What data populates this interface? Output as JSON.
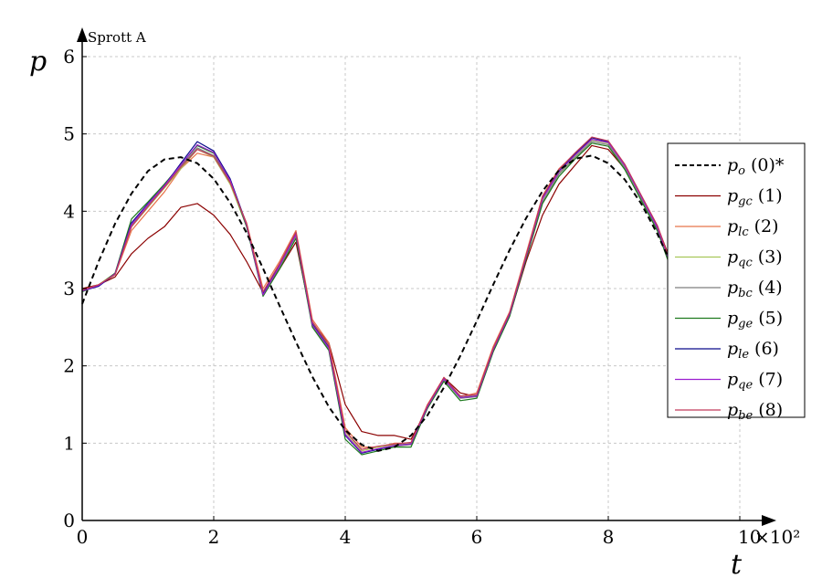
{
  "chart_data": {
    "type": "line",
    "title": "Sprott A",
    "xlabel": "t",
    "ylabel": "p",
    "x_multiplier_label": "×10²",
    "xlim": [
      0,
      10
    ],
    "ylim": [
      0,
      6
    ],
    "x_ticks": [
      "0",
      "2",
      "4",
      "6",
      "8",
      "10"
    ],
    "y_ticks": [
      "0",
      "1",
      "2",
      "3",
      "4",
      "5",
      "6"
    ],
    "grid": true,
    "legend_position": "right",
    "reference": {
      "legend_main": "p",
      "legend_sub": "o",
      "legend_tag": "(0)*",
      "color": "#000000",
      "dash": true,
      "x": [
        0,
        0.25,
        0.5,
        0.75,
        1.0,
        1.25,
        1.5,
        1.75,
        2.0,
        2.25,
        2.5,
        2.75,
        3.0,
        3.25,
        3.5,
        3.75,
        4.0,
        4.25,
        4.5,
        4.75,
        5.0,
        5.25,
        5.5,
        5.75,
        6.0,
        6.25,
        6.5,
        6.75,
        7.0,
        7.25,
        7.5,
        7.75,
        8.0,
        8.25,
        8.5,
        8.75,
        9.0,
        9.25,
        9.5,
        9.75
      ],
      "y": [
        2.8,
        3.35,
        3.84,
        4.23,
        4.52,
        4.67,
        4.7,
        4.62,
        4.42,
        4.11,
        3.72,
        3.26,
        2.78,
        2.31,
        1.86,
        1.47,
        1.17,
        0.98,
        0.9,
        0.95,
        1.1,
        1.36,
        1.72,
        2.13,
        2.58,
        3.05,
        3.5,
        3.91,
        4.26,
        4.53,
        4.68,
        4.72,
        4.62,
        4.41,
        4.1,
        3.7,
        3.24,
        2.76,
        2.29,
        1.84
      ]
    },
    "x": [
      0,
      0.25,
      0.5,
      0.75,
      1.0,
      1.25,
      1.5,
      1.75,
      2.0,
      2.25,
      2.5,
      2.75,
      3.0,
      3.25,
      3.5,
      3.75,
      4.0,
      4.25,
      4.5,
      4.75,
      5.0,
      5.25,
      5.5,
      5.75,
      6.0,
      6.25,
      6.5,
      6.75,
      7.0,
      7.25,
      7.5,
      7.75,
      8.0,
      8.25,
      8.5,
      8.75,
      9.0
    ],
    "series": [
      {
        "legend_sub": "gc",
        "legend_tag": "(1)",
        "color": "#8b0000",
        "y": [
          3.0,
          3.05,
          3.15,
          3.45,
          3.65,
          3.8,
          4.05,
          4.1,
          3.95,
          3.7,
          3.35,
          2.95,
          3.25,
          3.6,
          2.55,
          2.3,
          1.5,
          1.15,
          1.1,
          1.1,
          1.05,
          1.45,
          1.85,
          1.65,
          1.6,
          2.2,
          2.65,
          3.35,
          3.95,
          4.35,
          4.6,
          4.85,
          4.8,
          4.55,
          4.15,
          3.8,
          3.25
        ]
      },
      {
        "legend_sub": "lc",
        "legend_tag": "(2)",
        "color": "#e8734a",
        "y": [
          2.98,
          3.05,
          3.18,
          3.75,
          4.0,
          4.25,
          4.55,
          4.75,
          4.7,
          4.35,
          3.85,
          3.0,
          3.35,
          3.75,
          2.6,
          2.3,
          1.2,
          0.95,
          0.95,
          1.0,
          1.0,
          1.5,
          1.85,
          1.6,
          1.65,
          2.25,
          2.7,
          3.45,
          4.2,
          4.55,
          4.75,
          4.95,
          4.9,
          4.6,
          4.2,
          3.8,
          3.2
        ]
      },
      {
        "legend_sub": "qc",
        "legend_tag": "(3)",
        "color": "#a8c85a",
        "y": [
          2.98,
          3.05,
          3.2,
          3.8,
          4.05,
          4.3,
          4.55,
          4.8,
          4.7,
          4.35,
          3.8,
          2.95,
          3.3,
          3.7,
          2.55,
          2.25,
          1.15,
          0.9,
          0.95,
          0.98,
          1.0,
          1.48,
          1.83,
          1.6,
          1.62,
          2.22,
          2.68,
          3.42,
          4.15,
          4.5,
          4.72,
          4.92,
          4.88,
          4.58,
          4.18,
          3.78,
          3.18
        ]
      },
      {
        "legend_sub": "bc",
        "legend_tag": "(4)",
        "color": "#7f7f7f",
        "y": [
          2.97,
          3.04,
          3.18,
          3.82,
          4.08,
          4.32,
          4.58,
          4.82,
          4.72,
          4.38,
          3.82,
          2.92,
          3.28,
          3.68,
          2.52,
          2.22,
          1.12,
          0.88,
          0.92,
          0.96,
          0.98,
          1.46,
          1.82,
          1.58,
          1.6,
          2.2,
          2.66,
          3.4,
          4.12,
          4.48,
          4.7,
          4.9,
          4.86,
          4.56,
          4.16,
          3.76,
          3.16
        ]
      },
      {
        "legend_sub": "ge",
        "legend_tag": "(5)",
        "color": "#1e7a1e",
        "y": [
          2.96,
          3.04,
          3.2,
          3.9,
          4.12,
          4.35,
          4.6,
          4.85,
          4.75,
          4.4,
          3.8,
          2.9,
          3.25,
          3.65,
          2.5,
          2.2,
          1.05,
          0.85,
          0.9,
          0.95,
          0.95,
          1.45,
          1.8,
          1.55,
          1.58,
          2.18,
          2.64,
          3.38,
          4.1,
          4.45,
          4.68,
          4.88,
          4.84,
          4.54,
          4.14,
          3.74,
          3.14
        ]
      },
      {
        "legend_sub": "le",
        "legend_tag": "(6)",
        "color": "#0a0a8a",
        "y": [
          2.97,
          3.03,
          3.19,
          3.85,
          4.1,
          4.33,
          4.62,
          4.9,
          4.78,
          4.42,
          3.83,
          2.93,
          3.3,
          3.72,
          2.54,
          2.24,
          1.1,
          0.87,
          0.92,
          0.97,
          0.99,
          1.47,
          1.84,
          1.59,
          1.61,
          2.21,
          2.67,
          3.41,
          4.18,
          4.52,
          4.74,
          4.95,
          4.9,
          4.6,
          4.2,
          3.79,
          3.19
        ]
      },
      {
        "legend_sub": "qe",
        "legend_tag": "(7)",
        "color": "#9b1fd0",
        "y": [
          2.97,
          3.04,
          3.19,
          3.83,
          4.09,
          4.33,
          4.6,
          4.86,
          4.76,
          4.4,
          3.82,
          2.92,
          3.29,
          3.7,
          2.53,
          2.23,
          1.11,
          0.88,
          0.93,
          0.97,
          0.99,
          1.47,
          1.83,
          1.59,
          1.61,
          2.21,
          2.67,
          3.41,
          4.16,
          4.51,
          4.73,
          4.93,
          4.89,
          4.59,
          4.19,
          3.78,
          3.18
        ]
      },
      {
        "legend_sub": "be",
        "legend_tag": "(8)",
        "color": "#c23a5a",
        "y": [
          2.98,
          3.05,
          3.18,
          3.8,
          4.06,
          4.31,
          4.57,
          4.8,
          4.71,
          4.37,
          3.84,
          2.96,
          3.32,
          3.73,
          2.57,
          2.27,
          1.16,
          0.92,
          0.96,
          0.99,
          1.01,
          1.49,
          1.85,
          1.61,
          1.63,
          2.23,
          2.69,
          3.43,
          4.19,
          4.54,
          4.76,
          4.96,
          4.91,
          4.61,
          4.21,
          3.81,
          3.21
        ]
      }
    ]
  }
}
